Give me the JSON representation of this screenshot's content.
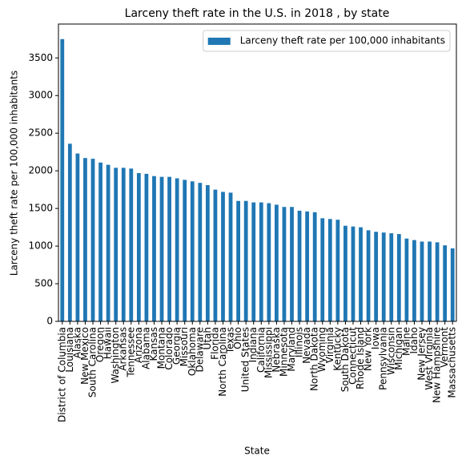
{
  "chart_data": {
    "type": "bar",
    "title": "Larceny theft rate in the U.S. in 2018 , by state",
    "xlabel": "State",
    "ylabel": "Larceny theft rate per 100,000 inhabitants",
    "categories": [
      "District of Columbia",
      "Louisiana",
      "Alaska",
      "New Mexico",
      "South Carolina",
      "Oregon",
      "Hawaii",
      "Washington",
      "Arkansas",
      "Tennessee",
      "Arizona",
      "Alabama",
      "Kansas",
      "Montana",
      "Colorado",
      "Georgia",
      "Missouri",
      "Oklahoma",
      "Delaware",
      "Utah",
      "Florida",
      "North Carolina",
      "Texas",
      "Ohio",
      "United States",
      "Indiana",
      "California",
      "Mississippi",
      "Nebraska",
      "Minnesota",
      "Maryland",
      "Illinois",
      "Nevada",
      "North Dakota",
      "Wyoming",
      "Virginia",
      "Kentucky",
      "South Dakota",
      "Connecticut",
      "Rhode Island",
      "New York",
      "Iowa",
      "Pennsylvania",
      "Wisconsin",
      "Michigan",
      "Maine",
      "Idaho",
      "New Jersey",
      "West Virginia",
      "New Hampshire",
      "Vermont",
      "Massachusetts"
    ],
    "series": [
      {
        "name": "Larceny theft rate per 100,000 inhabitants",
        "color": "#1f77b4",
        "values": [
          3750,
          2360,
          2230,
          2170,
          2160,
          2110,
          2080,
          2040,
          2040,
          2030,
          1970,
          1960,
          1930,
          1920,
          1920,
          1900,
          1880,
          1860,
          1840,
          1810,
          1750,
          1720,
          1710,
          1600,
          1600,
          1580,
          1580,
          1570,
          1550,
          1520,
          1520,
          1470,
          1460,
          1450,
          1370,
          1360,
          1350,
          1270,
          1260,
          1250,
          1210,
          1190,
          1180,
          1170,
          1160,
          1100,
          1080,
          1060,
          1060,
          1050,
          1010,
          970
        ]
      }
    ],
    "ylim": [
      0,
      3950
    ],
    "yticks": [
      0,
      500,
      1000,
      1500,
      2000,
      2500,
      3000,
      3500
    ],
    "legend": "upper right"
  }
}
